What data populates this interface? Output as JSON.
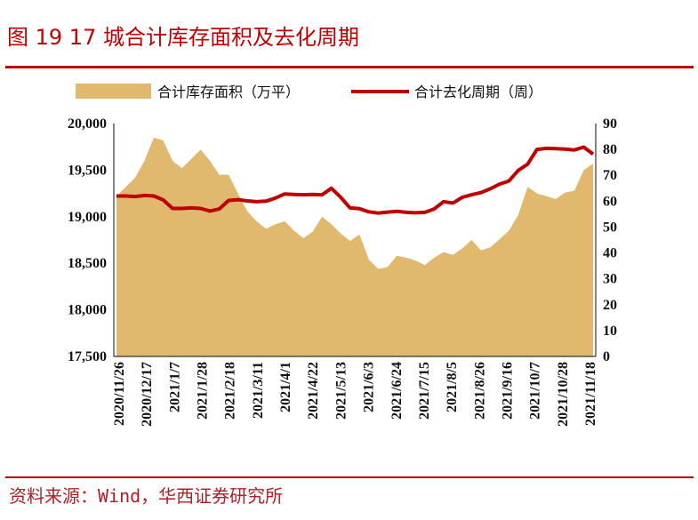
{
  "figure": {
    "title": "图 19  17 城合计库存面积及去化周期",
    "source": "资料来源：Wind，华西证券研究所"
  },
  "colors": {
    "area": "#E1B96E",
    "line": "#C00000",
    "accent": "#C00000"
  },
  "chart_data": {
    "type": "area",
    "legend": [
      {
        "label": "合计库存面积（万平）",
        "kind": "area",
        "axis": "left"
      },
      {
        "label": "合计去化周期（周）",
        "kind": "line",
        "axis": "right"
      }
    ],
    "x_tick_labels": [
      "2020/11/26",
      "2020/12/17",
      "2021/1/7",
      "2021/1/28",
      "2021/2/18",
      "2021/3/11",
      "2021/4/1",
      "2021/4/22",
      "2021/5/13",
      "2021/6/3",
      "2021/6/24",
      "2021/7/15",
      "2021/8/5",
      "2021/8/26",
      "2021/9/16",
      "2021/10/7",
      "2021/10/28",
      "2021/11/18"
    ],
    "y_left": {
      "min": 17500,
      "max": 20000,
      "ticks": [
        "17,500",
        "18,000",
        "18,500",
        "19,000",
        "19,500",
        "20,000"
      ]
    },
    "y_right": {
      "min": 0,
      "max": 90,
      "ticks": [
        "0",
        "10",
        "20",
        "30",
        "40",
        "50",
        "60",
        "70",
        "80",
        "90"
      ]
    },
    "series": [
      {
        "name": "合计库存面积（万平）",
        "axis": "left",
        "values": [
          19220,
          19320,
          19420,
          19600,
          19850,
          19820,
          19600,
          19520,
          19620,
          19720,
          19600,
          19450,
          19450,
          19250,
          19060,
          18950,
          18870,
          18920,
          18950,
          18850,
          18770,
          18840,
          19000,
          18920,
          18820,
          18740,
          18810,
          18540,
          18440,
          18460,
          18580,
          18560,
          18530,
          18480,
          18560,
          18620,
          18590,
          18660,
          18750,
          18640,
          18670,
          18760,
          18850,
          19020,
          19320,
          19250,
          19220,
          19190,
          19260,
          19280,
          19500,
          19570
        ]
      },
      {
        "name": "合计去化周期（周）",
        "axis": "right",
        "values": [
          62,
          62,
          61.8,
          62.2,
          62,
          60.5,
          57.2,
          57.2,
          57.4,
          57.2,
          56.2,
          57,
          60.3,
          60.6,
          60.1,
          59.8,
          60,
          61.2,
          62.8,
          62.6,
          62.5,
          62.6,
          62.5,
          65,
          61.5,
          57.4,
          57.1,
          55.9,
          55.4,
          55.8,
          56.1,
          55.7,
          55.5,
          55.7,
          57,
          59.8,
          59.3,
          61.5,
          62.5,
          63.3,
          64.8,
          66.6,
          67.8,
          71.9,
          74.3,
          80,
          80.4,
          80.3,
          80.1,
          79.8,
          80.9,
          78.2
        ]
      }
    ]
  }
}
